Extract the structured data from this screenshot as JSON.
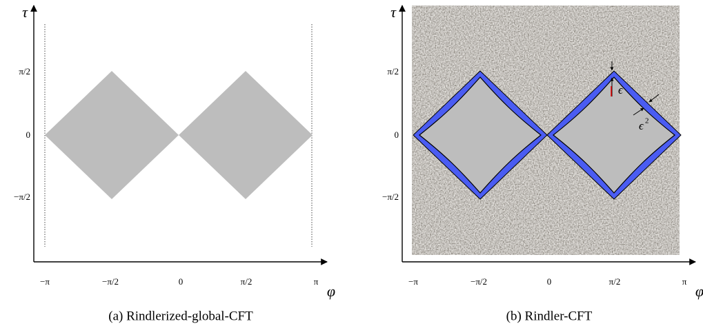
{
  "panels": [
    {
      "y_axis_label": "τ",
      "x_axis_label": "φ",
      "y_ticks": [
        "π/2",
        "0",
        "−π/2"
      ],
      "x_ticks": [
        "−π",
        "−π/2",
        "0",
        "π/2",
        "π"
      ],
      "caption": "(a) Rindlerized-global-CFT"
    },
    {
      "y_axis_label": "τ",
      "x_axis_label": "φ",
      "y_ticks": [
        "π/2",
        "0",
        "−π/2"
      ],
      "x_ticks": [
        "−π",
        "−π/2",
        "0",
        "π/2",
        "π"
      ],
      "caption": "(b) Rindler-CFT",
      "annotations": {
        "epsilon": "ϵ",
        "epsilon_squared": "ϵ",
        "exponent": "2"
      }
    }
  ]
}
